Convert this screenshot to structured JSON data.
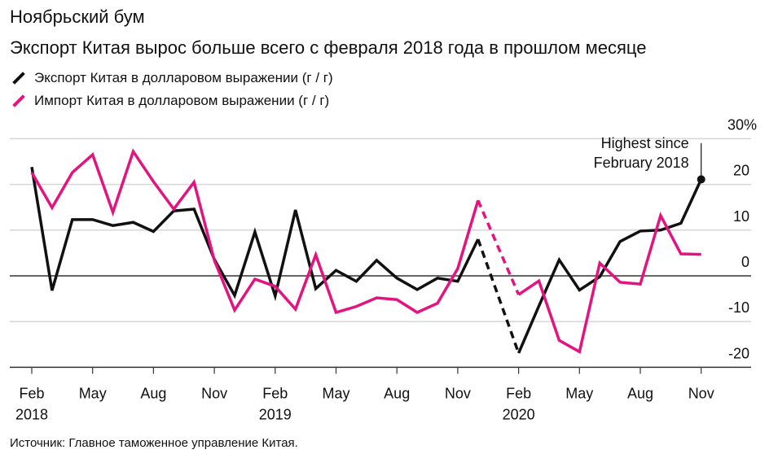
{
  "chart_data": {
    "type": "line",
    "title": "Ноябрьский бум",
    "subtitle": "Экспорт Китая вырос больше всего с февраля 2018 года в прошлом месяце",
    "x": [
      "2018-02",
      "2018-03",
      "2018-04",
      "2018-05",
      "2018-06",
      "2018-07",
      "2018-08",
      "2018-09",
      "2018-10",
      "2018-11",
      "2018-12",
      "2019-01",
      "2019-02",
      "2019-03",
      "2019-04",
      "2019-05",
      "2019-06",
      "2019-07",
      "2019-08",
      "2019-09",
      "2019-10",
      "2019-11",
      "2019-12",
      "2020-01",
      "2020-02",
      "2020-03",
      "2020-04",
      "2020-05",
      "2020-06",
      "2020-07",
      "2020-08",
      "2020-09",
      "2020-10",
      "2020-11"
    ],
    "series": [
      {
        "name": "Экспорт Китая в долларовом выражении (г / г)",
        "color": "#111111",
        "values": [
          23.8,
          -3.2,
          12.3,
          12.3,
          11.0,
          11.7,
          9.7,
          14.2,
          14.6,
          3.6,
          -4.3,
          9.6,
          -4.4,
          14.4,
          -2.8,
          1.2,
          -1.2,
          3.4,
          -0.5,
          -3.0,
          -0.5,
          -1.2,
          8.0,
          null,
          -16.9,
          -6.6,
          3.5,
          -3.1,
          -0.2,
          7.5,
          9.8,
          10.0,
          11.5,
          21.1
        ]
      },
      {
        "name": "Импорт Китая в долларовом выражении (г / г)",
        "color": "#e3147f",
        "values": [
          22.6,
          14.9,
          22.6,
          26.5,
          13.9,
          27.2,
          20.6,
          14.6,
          20.5,
          3.4,
          -7.5,
          -0.7,
          -2.3,
          -7.3,
          4.6,
          -8.0,
          -6.7,
          -4.8,
          -5.2,
          -8.0,
          -6.0,
          1.6,
          16.5,
          null,
          -4.1,
          -1.1,
          -14.1,
          -16.6,
          2.8,
          -1.4,
          -1.8,
          13.2,
          4.8,
          4.7
        ]
      }
    ],
    "gap_style": "dashed",
    "x_ticks": [
      {
        "label": "Feb",
        "year": "2018",
        "index": 0
      },
      {
        "label": "May",
        "year": "",
        "index": 3
      },
      {
        "label": "Aug",
        "year": "",
        "index": 6
      },
      {
        "label": "Nov",
        "year": "",
        "index": 9
      },
      {
        "label": "Feb",
        "year": "2019",
        "index": 12
      },
      {
        "label": "May",
        "year": "",
        "index": 15
      },
      {
        "label": "Aug",
        "year": "",
        "index": 18
      },
      {
        "label": "Nov",
        "year": "",
        "index": 21
      },
      {
        "label": "Feb",
        "year": "2020",
        "index": 24
      },
      {
        "label": "May",
        "year": "",
        "index": 27
      },
      {
        "label": "Aug",
        "year": "",
        "index": 30
      },
      {
        "label": "Nov",
        "year": "",
        "index": 33
      }
    ],
    "y_ticks": [
      {
        "value": 30,
        "label": "30%"
      },
      {
        "value": 20,
        "label": "20"
      },
      {
        "value": 10,
        "label": "10"
      },
      {
        "value": 0,
        "label": "0"
      },
      {
        "value": -10,
        "label": "-10"
      },
      {
        "value": -20,
        "label": "-20"
      }
    ],
    "ylim": [
      -20,
      30
    ],
    "y_axis_side": "right",
    "grid": true,
    "legend_placement": "top-left",
    "annotation": {
      "text_line1": "Highest since",
      "text_line2": "February 2018",
      "series": 0,
      "index": 33
    },
    "source": "Источник: Главное таможенное управление Китая."
  }
}
